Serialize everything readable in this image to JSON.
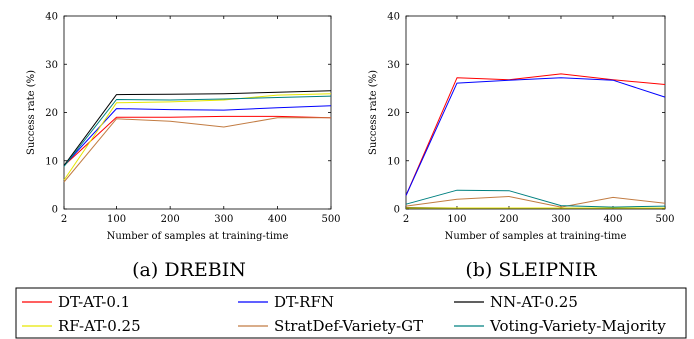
{
  "chart_data": [
    {
      "type": "line",
      "caption": "(a) DREBIN",
      "xlabel": "Number of samples at training-time",
      "ylabel": "Success rate (%)",
      "x": [
        2,
        100,
        200,
        300,
        400,
        500
      ],
      "xlim": [
        2,
        500
      ],
      "ylim": [
        0,
        40
      ],
      "yticks": [
        0,
        10,
        20,
        30,
        40
      ],
      "grid": false,
      "series": [
        {
          "name": "DT-AT-0.1",
          "color": "#ff0000",
          "values": [
            9.0,
            19.0,
            19.0,
            19.2,
            19.2,
            18.9
          ]
        },
        {
          "name": "DT-RFN",
          "color": "#0000ff",
          "values": [
            9.0,
            20.8,
            20.6,
            20.5,
            21.0,
            21.4
          ]
        },
        {
          "name": "NN-AT-0.25",
          "color": "#000000",
          "values": [
            9.0,
            23.7,
            23.8,
            23.9,
            24.2,
            24.5
          ]
        },
        {
          "name": "RF-AT-0.25",
          "color": "#e6e600",
          "values": [
            6.0,
            22.0,
            22.2,
            22.6,
            23.6,
            23.9
          ]
        },
        {
          "name": "StratDef-Variety-GT",
          "color": "#c27c43",
          "values": [
            5.6,
            18.7,
            18.2,
            17.0,
            18.9,
            18.9
          ]
        },
        {
          "name": "Voting-Variety-Majority",
          "color": "#008080",
          "values": [
            8.8,
            22.7,
            22.6,
            22.8,
            23.1,
            23.4
          ]
        }
      ]
    },
    {
      "type": "line",
      "caption": "(b) SLEIPNIR",
      "xlabel": "Number of samples at training-time",
      "ylabel": "Success rate (%)",
      "x": [
        2,
        100,
        200,
        300,
        400,
        500
      ],
      "xlim": [
        2,
        500
      ],
      "ylim": [
        0,
        40
      ],
      "yticks": [
        0,
        10,
        20,
        30,
        40
      ],
      "grid": false,
      "series": [
        {
          "name": "DT-AT-0.1",
          "color": "#ff0000",
          "values": [
            2.8,
            27.2,
            26.8,
            28.0,
            26.8,
            25.8
          ]
        },
        {
          "name": "DT-RFN",
          "color": "#0000ff",
          "values": [
            2.8,
            26.1,
            26.7,
            27.2,
            26.7,
            23.2
          ]
        },
        {
          "name": "NN-AT-0.25",
          "color": "#000000",
          "values": [
            0.3,
            0.2,
            0.2,
            0.2,
            0.2,
            0.2
          ]
        },
        {
          "name": "RF-AT-0.25",
          "color": "#e6e600",
          "values": [
            0.2,
            0.2,
            0.2,
            0.2,
            0.2,
            0.2
          ]
        },
        {
          "name": "StratDef-Variety-GT",
          "color": "#c27c43",
          "values": [
            0.6,
            2.0,
            2.6,
            0.4,
            2.4,
            1.2
          ]
        },
        {
          "name": "Voting-Variety-Majority",
          "color": "#008080",
          "values": [
            1.0,
            3.9,
            3.8,
            0.7,
            0.4,
            0.6
          ]
        }
      ]
    }
  ],
  "legend": {
    "placement": "bottom",
    "entries": [
      {
        "label": "DT-AT-0.1",
        "color": "#ff0000"
      },
      {
        "label": "DT-RFN",
        "color": "#0000ff"
      },
      {
        "label": "NN-AT-0.25",
        "color": "#000000"
      },
      {
        "label": "RF-AT-0.25",
        "color": "#e6e600"
      },
      {
        "label": "StratDef-Variety-GT",
        "color": "#c27c43"
      },
      {
        "label": "Voting-Variety-Majority",
        "color": "#008080"
      }
    ]
  }
}
